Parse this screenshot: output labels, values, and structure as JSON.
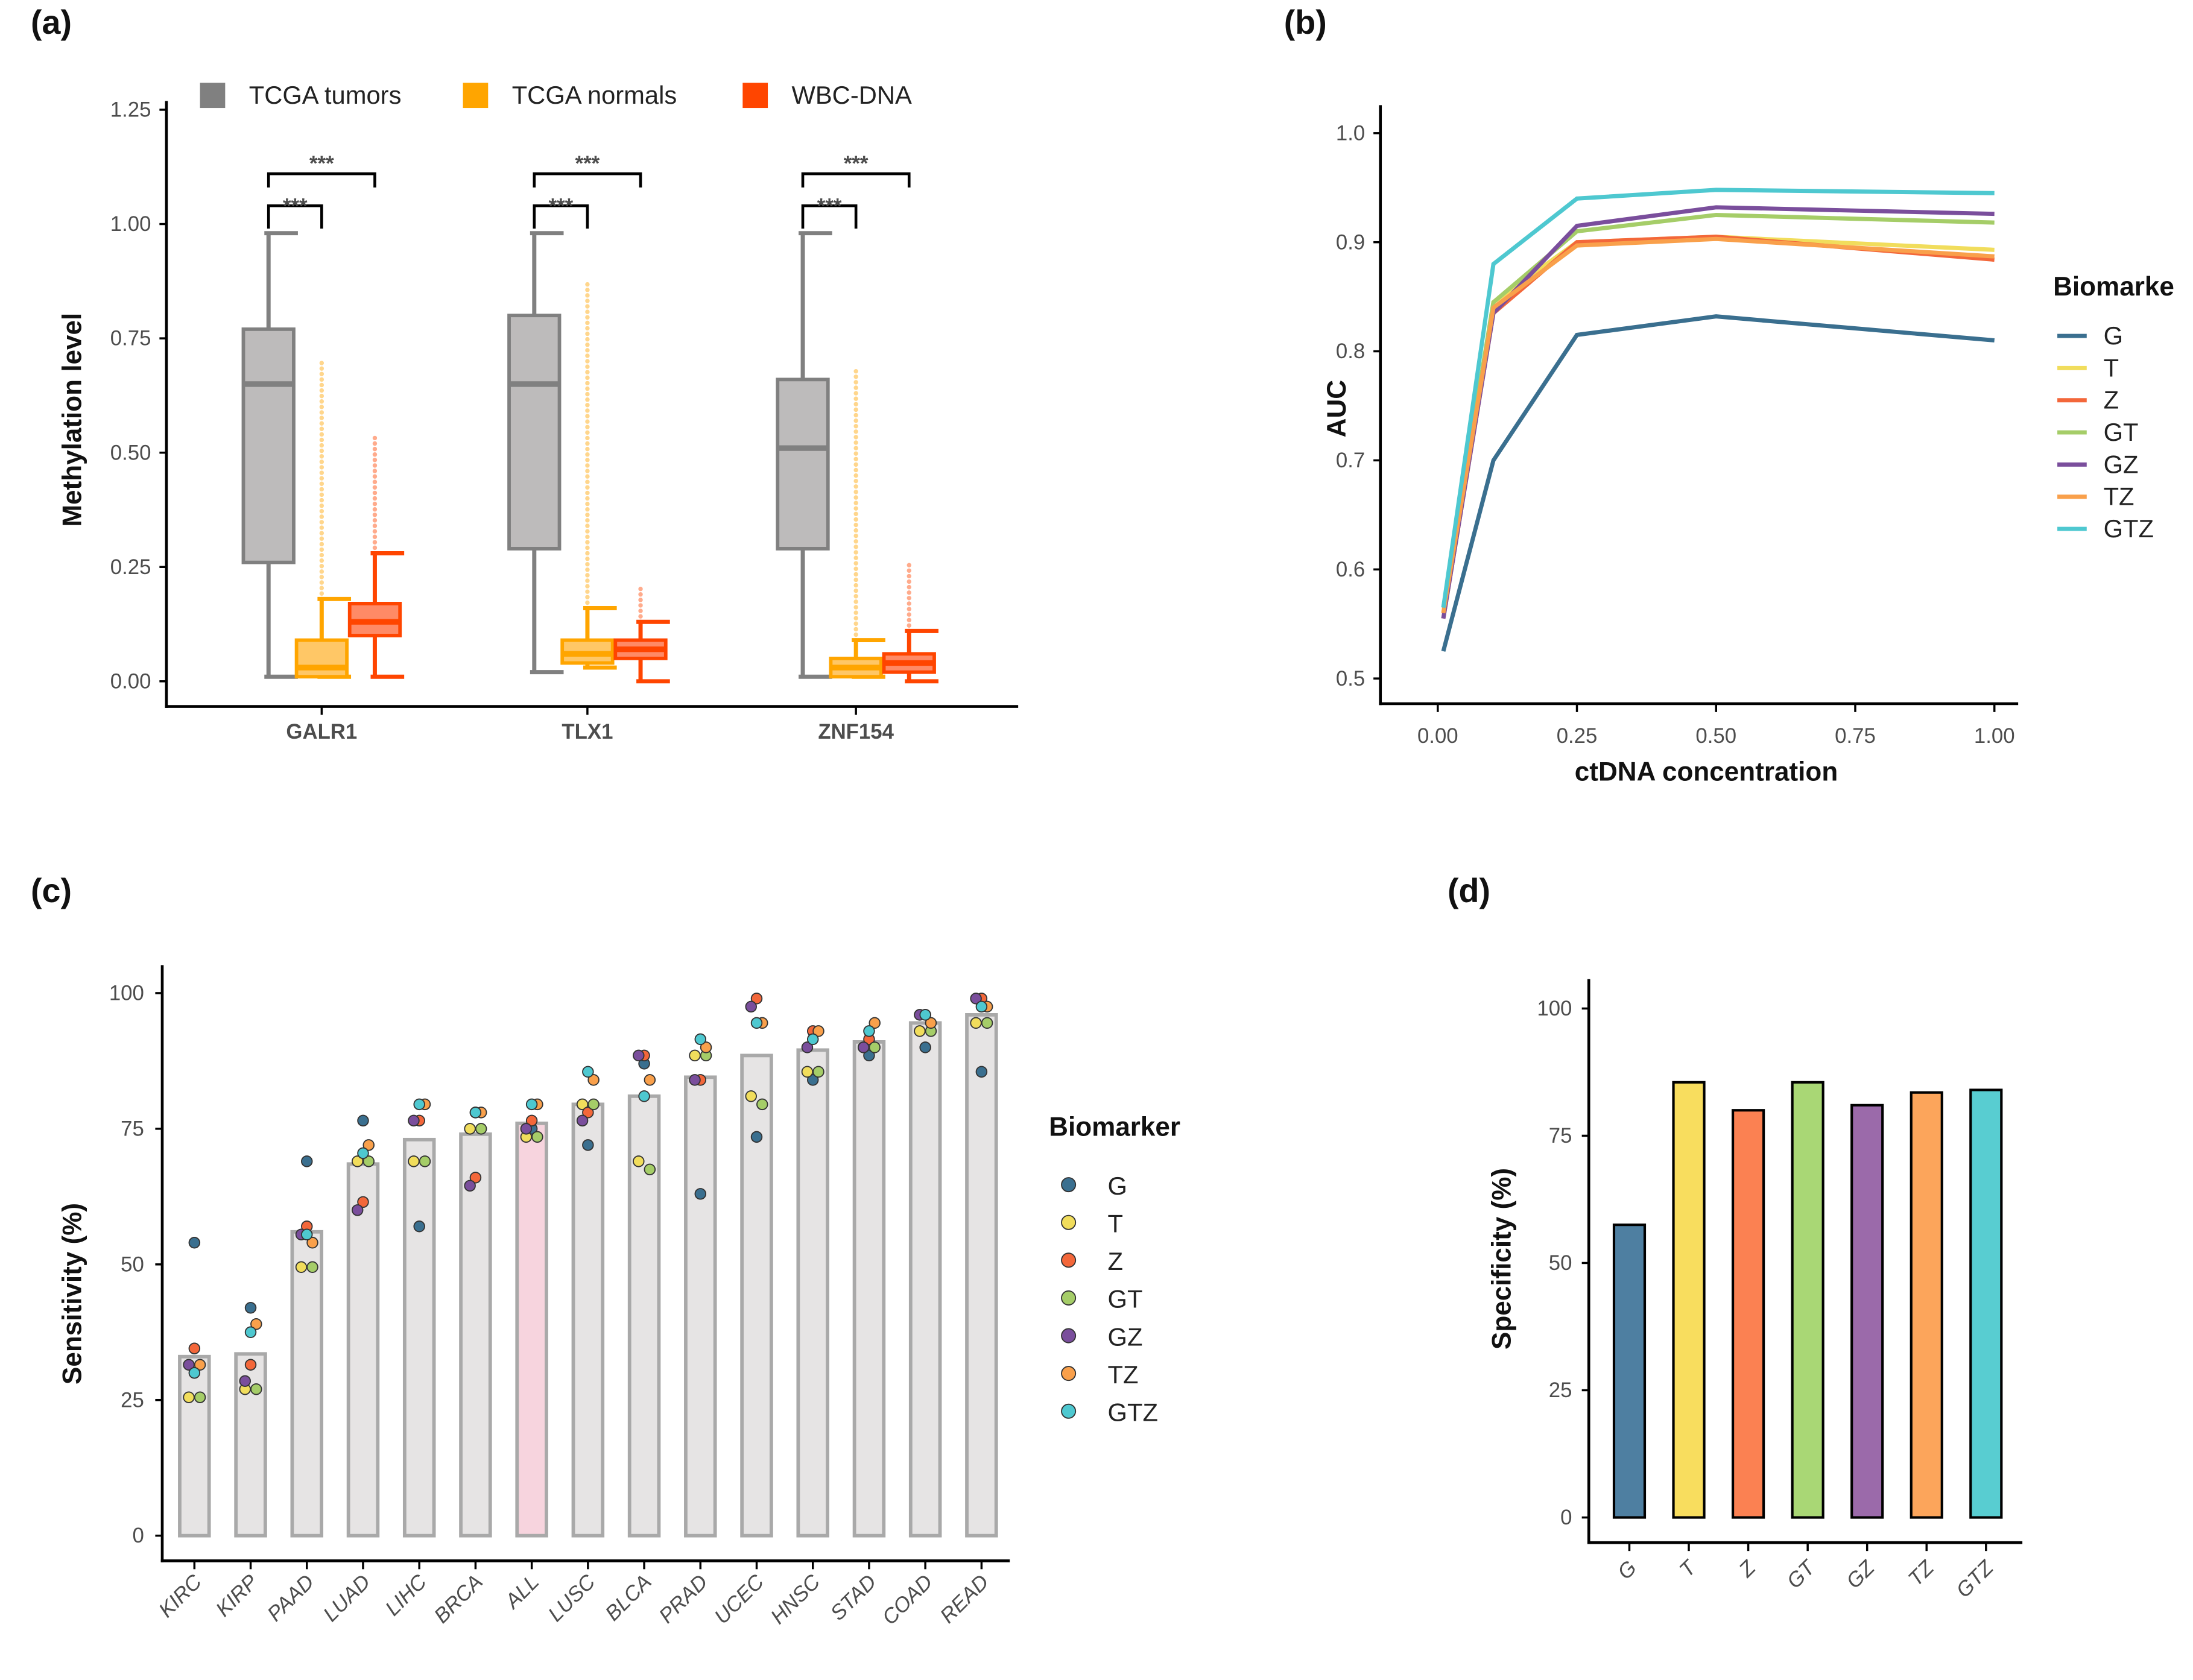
{
  "chart_data": [
    {
      "panel": "(a)",
      "type": "box",
      "ylabel": "Methylation level",
      "ylim": [
        -0.05,
        1.25
      ],
      "yticks": [
        "0.00",
        "0.25",
        "0.50",
        "0.75",
        "1.00",
        "1.25"
      ],
      "categories": [
        "GALR1",
        "TLX1",
        "ZNF154"
      ],
      "legend": [
        "TCGA tumors",
        "TCGA normals",
        "WBC-DNA"
      ],
      "legend_placement": "top",
      "colors": {
        "TCGA tumors": "#808080",
        "TCGA normals": "#ffa500",
        "WBC-DNA": "#ff4500"
      },
      "significance": "***",
      "boxes": {
        "GALR1": [
          {
            "min": 0.01,
            "q1": 0.26,
            "median": 0.65,
            "q3": 0.77,
            "max": 0.98,
            "outlier_max": 0.98
          },
          {
            "min": 0.01,
            "q1": 0.01,
            "median": 0.03,
            "q3": 0.09,
            "max": 0.18,
            "outlier_max": 0.7
          },
          {
            "min": 0.01,
            "q1": 0.1,
            "median": 0.13,
            "q3": 0.17,
            "max": 0.28,
            "outlier_max": 0.54
          }
        ],
        "TLX1": [
          {
            "min": 0.02,
            "q1": 0.29,
            "median": 0.65,
            "q3": 0.8,
            "max": 0.98,
            "outlier_max": 0.98
          },
          {
            "min": 0.03,
            "q1": 0.04,
            "median": 0.06,
            "q3": 0.09,
            "max": 0.16,
            "outlier_max": 0.88
          },
          {
            "min": 0.0,
            "q1": 0.05,
            "median": 0.07,
            "q3": 0.09,
            "max": 0.13,
            "outlier_max": 0.21
          }
        ],
        "ZNF154": [
          {
            "min": 0.01,
            "q1": 0.29,
            "median": 0.51,
            "q3": 0.66,
            "max": 0.98,
            "outlier_max": 0.98
          },
          {
            "min": 0.01,
            "q1": 0.01,
            "median": 0.03,
            "q3": 0.05,
            "max": 0.09,
            "outlier_max": 0.68
          },
          {
            "min": 0.0,
            "q1": 0.02,
            "median": 0.04,
            "q3": 0.06,
            "max": 0.11,
            "outlier_max": 0.26
          }
        ]
      }
    },
    {
      "panel": "(b)",
      "type": "line",
      "xlabel": "ctDNA concentration",
      "ylabel": "AUC",
      "xlim": [
        0,
        1
      ],
      "ylim": [
        0.48,
        1.02
      ],
      "xticks": [
        "0.00",
        "0.25",
        "0.50",
        "0.75",
        "1.00"
      ],
      "yticks": [
        "0.5",
        "0.6",
        "0.7",
        "0.8",
        "0.9",
        "1.0"
      ],
      "legend_title": "Biomarke",
      "legend_placement": "right",
      "x": [
        0.01,
        0.1,
        0.25,
        0.5,
        1.0
      ],
      "series": [
        {
          "name": "G",
          "color": "#3a6f8f",
          "values": [
            0.525,
            0.7,
            0.815,
            0.832,
            0.81
          ]
        },
        {
          "name": "T",
          "color": "#f1dd5c",
          "values": [
            0.56,
            0.845,
            0.9,
            0.905,
            0.893
          ]
        },
        {
          "name": "Z",
          "color": "#f3673a",
          "values": [
            0.555,
            0.835,
            0.9,
            0.905,
            0.884
          ]
        },
        {
          "name": "GT",
          "color": "#a5cd68",
          "values": [
            0.565,
            0.845,
            0.91,
            0.925,
            0.918
          ]
        },
        {
          "name": "GZ",
          "color": "#7a4e9c",
          "values": [
            0.555,
            0.835,
            0.915,
            0.932,
            0.926
          ]
        },
        {
          "name": "TZ",
          "color": "#f9a04b",
          "values": [
            0.56,
            0.84,
            0.897,
            0.903,
            0.887
          ]
        },
        {
          "name": "GTZ",
          "color": "#4ec8d0",
          "values": [
            0.565,
            0.88,
            0.94,
            0.948,
            0.945
          ]
        }
      ]
    },
    {
      "panel": "(c)",
      "type": "bar",
      "ylabel": "Sensitivity (%)",
      "ylim": [
        -4,
        105
      ],
      "yticks": [
        "0",
        "25",
        "50",
        "75",
        "100"
      ],
      "legend_title": "Biomarker",
      "legend_placement": "right",
      "categories": [
        "KIRC",
        "KIRP",
        "PAAD",
        "LUAD",
        "LIHC",
        "BRCA",
        "ALL",
        "LUSC",
        "BLCA",
        "PRAD",
        "UCEC",
        "HNSC",
        "STAD",
        "COAD",
        "READ"
      ],
      "values": [
        33,
        33.5,
        56,
        68.5,
        73,
        74,
        76,
        79.5,
        81,
        84.5,
        88.5,
        89.5,
        91,
        94.5,
        96
      ],
      "bar_color": "#e6e4e4",
      "highlight": {
        "category": "ALL",
        "color": "#f7d4de"
      },
      "point_series": [
        {
          "name": "G",
          "color": "#3a6f8f",
          "values": [
            54,
            42,
            69,
            76.5,
            57,
            78,
            75,
            72,
            87,
            63,
            73.5,
            84,
            88.5,
            90,
            85.5
          ]
        },
        {
          "name": "T",
          "color": "#f1dd5c",
          "values": [
            25.5,
            27,
            49.5,
            69,
            69,
            75,
            73.5,
            79.5,
            69,
            88.5,
            81,
            85.5,
            90,
            93,
            94.5
          ]
        },
        {
          "name": "Z",
          "color": "#f3673a",
          "values": [
            34.5,
            31.5,
            57,
            61.5,
            76.5,
            66,
            76.5,
            78,
            88.5,
            84,
            99,
            93,
            91.5,
            96,
            99
          ]
        },
        {
          "name": "GT",
          "color": "#a5cd68",
          "values": [
            25.5,
            27,
            49.5,
            69,
            69,
            75,
            73.5,
            79.5,
            67.5,
            88.5,
            79.5,
            85.5,
            90,
            93,
            94.5
          ]
        },
        {
          "name": "GZ",
          "color": "#7a4e9c",
          "values": [
            31.5,
            28.5,
            55.5,
            60,
            76.5,
            64.5,
            75,
            76.5,
            88.5,
            84,
            97.5,
            90,
            90,
            96,
            99
          ]
        },
        {
          "name": "TZ",
          "color": "#f9a04b",
          "values": [
            31.5,
            39,
            54,
            72,
            79.5,
            78,
            79.5,
            84,
            84,
            90,
            94.5,
            93,
            94.5,
            94.5,
            97.5
          ]
        },
        {
          "name": "GTZ",
          "color": "#4ec8d0",
          "values": [
            30,
            37.5,
            55.5,
            70.5,
            79.5,
            78,
            79.5,
            85.5,
            81,
            91.5,
            94.5,
            91.5,
            93,
            96,
            97.5
          ]
        }
      ]
    },
    {
      "panel": "(d)",
      "type": "bar",
      "ylabel": "Specificity (%)",
      "ylim": [
        -4,
        105
      ],
      "yticks": [
        "0",
        "25",
        "50",
        "75",
        "100"
      ],
      "categories": [
        "G",
        "T",
        "Z",
        "GT",
        "GZ",
        "TZ",
        "GTZ"
      ],
      "values": [
        57.5,
        85.5,
        80,
        85.5,
        81,
        83.5,
        84
      ],
      "colors": [
        "#4e7fa1",
        "#f8dd5e",
        "#fb8152",
        "#a9d775",
        "#9b6aaa",
        "#fca55b",
        "#58cdd1"
      ]
    }
  ]
}
